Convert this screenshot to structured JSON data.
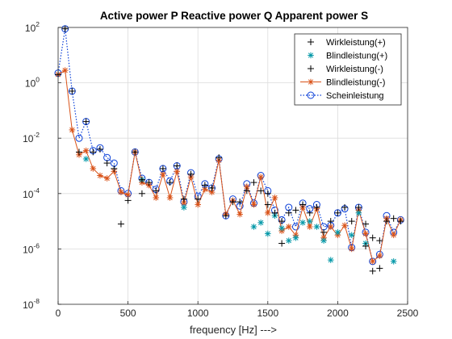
{
  "chart_data": {
    "type": "scatter",
    "title": "Active power P Reactive power Q Apparent power S",
    "xlabel": "frequency [Hz] --->",
    "ylabel": "",
    "xlim": [
      0,
      2500
    ],
    "ylim_log10": [
      -8,
      2
    ],
    "yscale": "log",
    "grid": true,
    "legend_position": "top-right",
    "xticks": [
      0,
      500,
      1000,
      1500,
      2000,
      2500
    ],
    "yticks": [
      {
        "base": "10",
        "exp": "-8",
        "log10": -8
      },
      {
        "base": "10",
        "exp": "-6",
        "log10": -6
      },
      {
        "base": "10",
        "exp": "-4",
        "log10": -4
      },
      {
        "base": "10",
        "exp": "-2",
        "log10": -2
      },
      {
        "base": "10",
        "exp": "0",
        "log10": 0
      },
      {
        "base": "10",
        "exp": "2",
        "log10": 2
      }
    ],
    "x": [
      0,
      50,
      100,
      150,
      200,
      250,
      300,
      350,
      400,
      450,
      500,
      550,
      600,
      650,
      700,
      750,
      800,
      850,
      900,
      950,
      1000,
      1050,
      1100,
      1150,
      1200,
      1250,
      1300,
      1350,
      1400,
      1450,
      1500,
      1550,
      1600,
      1650,
      1700,
      1750,
      1800,
      1850,
      1900,
      1950,
      2000,
      2050,
      2100,
      2150,
      2200,
      2250,
      2300,
      2350,
      2400,
      2450
    ],
    "series": [
      {
        "name": "Wirkleistung(+)",
        "marker": "plus",
        "color": "#000000",
        "line": "none",
        "log10_values": [
          0.3,
          1.95,
          -0.3,
          -2.5,
          -1.4,
          -2.5,
          -2.4,
          -2.9,
          -3.1,
          null,
          null,
          -2.5,
          -3.5,
          -3.6,
          -3.9,
          -3.1,
          -3.6,
          -3.0,
          -4.2,
          -3.3,
          -4.2,
          -3.7,
          -3.8,
          -2.7,
          -4.8,
          -4.3,
          -4.3,
          -3.9,
          -3.6,
          -3.9,
          -4.0,
          -4.7,
          -5.0,
          -4.7,
          -4.6,
          -4.4,
          -4.7,
          -4.5,
          -5.4,
          -5.0,
          -4.7,
          -4.5,
          -5.0,
          -4.5,
          -5.1,
          -5.6,
          -5.7,
          -5.0,
          -4.9,
          -5.0
        ]
      },
      {
        "name": "Blindleistung(+)",
        "marker": "star",
        "color": "#0097A7",
        "line": "none",
        "log10_values": [
          null,
          null,
          null,
          null,
          -2.75,
          null,
          null,
          null,
          null,
          null,
          null,
          null,
          -3.5,
          null,
          null,
          null,
          null,
          null,
          -4.5,
          null,
          null,
          null,
          null,
          null,
          null,
          null,
          null,
          null,
          -5.2,
          -5.05,
          -5.45,
          -4.8,
          -5.25,
          -5.7,
          -5.6,
          -5.05,
          -5.0,
          -5.2,
          -5.7,
          -6.4,
          -5.4,
          null,
          -5.5,
          -4.7,
          -5.8,
          null,
          null,
          null,
          -6.45,
          null
        ]
      },
      {
        "name": "Wirkleistung(-)",
        "marker": "plus",
        "color": "#000000",
        "line": "none",
        "log10_values": [
          null,
          null,
          null,
          null,
          null,
          null,
          null,
          null,
          null,
          -5.1,
          -4.25,
          null,
          -4.0,
          null,
          null,
          null,
          null,
          null,
          null,
          null,
          null,
          null,
          null,
          null,
          null,
          null,
          null,
          null,
          null,
          null,
          -4.4,
          null,
          -5.8,
          null,
          null,
          null,
          null,
          null,
          null,
          null,
          null,
          null,
          null,
          null,
          -5.9,
          -6.8,
          -6.7,
          null,
          null,
          null
        ]
      },
      {
        "name": "Blindleistung(-)",
        "marker": "star",
        "color": "#D95319",
        "line": "solid",
        "log10_values": [
          0.3,
          0.45,
          -1.7,
          -2.6,
          -2.45,
          -3.1,
          -3.35,
          -3.45,
          -3.2,
          -3.95,
          -4.05,
          -2.5,
          -3.6,
          -3.7,
          -4.15,
          -3.3,
          -4.15,
          -3.2,
          -4.35,
          -3.4,
          -4.4,
          -3.85,
          -3.95,
          -2.8,
          -4.75,
          -4.25,
          -4.75,
          -3.75,
          -4.4,
          -3.4,
          -4.7,
          -4.15,
          -5.35,
          -5.2,
          -5.5,
          -4.5,
          -5.2,
          -4.55,
          -5.6,
          -5.2,
          -5.5,
          -5.15,
          -6.0,
          -4.6,
          -5.45,
          -6.45,
          -6.25,
          -4.9,
          -5.5,
          -4.95
        ]
      },
      {
        "name": "Scheinleistung",
        "marker": "circle",
        "color": "#0A3FD8",
        "line": "dotted",
        "log10_values": [
          0.35,
          1.95,
          -0.3,
          -2.0,
          -1.4,
          -2.45,
          -2.35,
          -2.7,
          -2.9,
          -3.9,
          -4.0,
          -2.5,
          -3.45,
          -3.6,
          -3.85,
          -3.1,
          -3.55,
          -3.0,
          -4.3,
          -3.25,
          -4.1,
          -3.65,
          -3.8,
          -2.75,
          -4.8,
          -4.2,
          -4.45,
          -3.65,
          -4.35,
          -3.35,
          -3.9,
          -4.6,
          -4.95,
          -4.5,
          -5.2,
          -4.35,
          -4.55,
          -4.4,
          -5.2,
          -5.15,
          -4.7,
          -4.55,
          -5.95,
          -4.5,
          -5.4,
          -6.45,
          -6.2,
          -4.8,
          -5.4,
          -4.95
        ]
      }
    ]
  }
}
